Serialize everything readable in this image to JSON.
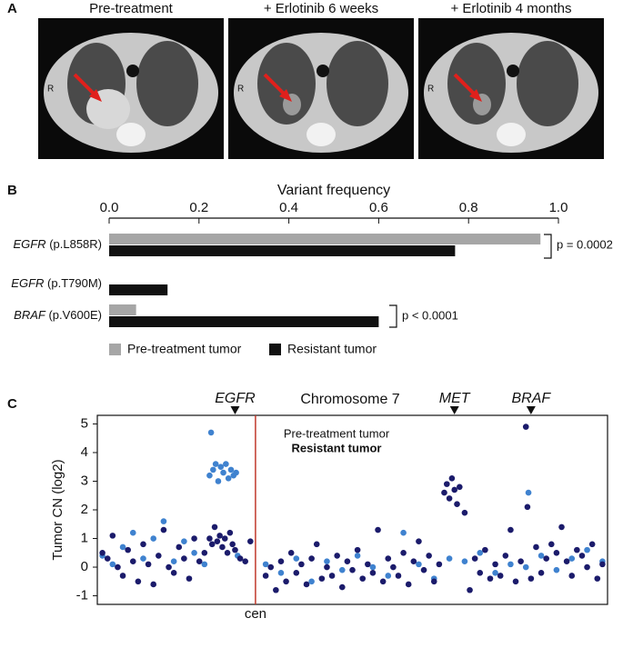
{
  "panel_a": {
    "label": "A",
    "images": [
      {
        "title": "Pre-treatment",
        "marker": "R"
      },
      {
        "title": "+ Erlotinib 6 weeks",
        "marker": "R"
      },
      {
        "title": "+ Erlotinib 4 months",
        "marker": "R"
      }
    ]
  },
  "chart_data": [
    {
      "panel": "B",
      "type": "hbar",
      "xlabel": "Variant frequency",
      "categories": [
        "EGFR (p.L858R)",
        "EGFR (p.T790M)",
        "BRAF (p.V600E)"
      ],
      "series": [
        {
          "name": "Pre-treatment tumor",
          "color": "#a6a6a6",
          "values": [
            0.96,
            0,
            0.06
          ]
        },
        {
          "name": "Resistant tumor",
          "color": "#111111",
          "values": [
            0.77,
            0.13,
            0.6
          ]
        }
      ],
      "xlim": [
        0,
        1
      ],
      "xticks": [
        {
          "value": 0,
          "label": "0.0"
        },
        0.2,
        0.4,
        0.6,
        0.8,
        {
          "value": 1,
          "label": "1.0"
        }
      ],
      "annotations": [
        {
          "text": "p = 0.0002"
        },
        {
          "text": "p < 0.0001"
        }
      ],
      "legend": "bottom"
    },
    {
      "panel": "C",
      "type": "scatter",
      "title": "Chromosome 7",
      "ylabel": "Tumor CN (log2)",
      "xlim": [
        0,
        100
      ],
      "ylim": [
        -1.3,
        5.3
      ],
      "yticks": [
        -1,
        0,
        1,
        2,
        3,
        4,
        5
      ],
      "markers": [
        {
          "label": "EGFR",
          "x": 27
        },
        {
          "label": "MET",
          "x": 70
        },
        {
          "label": "BRAF",
          "x": 85
        }
      ],
      "centromere": {
        "label": "cen",
        "x": 31
      },
      "series": [
        {
          "name": "Pre-treatment tumor",
          "color": "#3f82cf",
          "x": [
            1,
            3,
            5,
            7,
            9,
            11,
            13,
            15,
            17,
            19,
            21,
            22,
            22.3,
            22.7,
            23.2,
            23.7,
            24.2,
            24.7,
            25.2,
            25.7,
            26.2,
            26.7,
            27.2,
            27.5,
            33,
            36,
            39,
            42,
            45,
            48,
            51,
            54,
            57,
            60,
            63,
            66,
            69,
            72,
            75,
            78,
            81,
            84,
            84.5,
            87,
            90,
            93,
            96,
            99
          ],
          "values": [
            0.4,
            0.1,
            0.7,
            1.2,
            0.3,
            1.0,
            1.6,
            0.2,
            0.9,
            0.5,
            0.1,
            3.2,
            4.7,
            3.4,
            3.6,
            3.0,
            3.5,
            3.3,
            3.6,
            3.1,
            3.4,
            3.2,
            3.3,
            0.4,
            0.1,
            -0.2,
            0.3,
            -0.5,
            0.2,
            -0.1,
            0.4,
            0.0,
            -0.3,
            1.2,
            0.1,
            -0.4,
            0.3,
            0.2,
            0.5,
            -0.2,
            0.1,
            0.0,
            2.6,
            0.4,
            -0.1,
            0.3,
            0.6,
            0.2
          ]
        },
        {
          "name": "Resistant tumor",
          "color": "#1b1b6b",
          "x": [
            1,
            2,
            3,
            4,
            5,
            6,
            7,
            8,
            9,
            10,
            11,
            12,
            13,
            14,
            15,
            16,
            17,
            18,
            19,
            20,
            21,
            22,
            22.5,
            23,
            23.5,
            24,
            24.5,
            25,
            25.5,
            26,
            26.5,
            27,
            28,
            29,
            30,
            33,
            34,
            35,
            36,
            37,
            38,
            39,
            40,
            41,
            42,
            43,
            44,
            45,
            46,
            47,
            48,
            49,
            50,
            51,
            52,
            53,
            54,
            55,
            56,
            57,
            58,
            59,
            60,
            61,
            62,
            63,
            64,
            65,
            66,
            67,
            68,
            68.5,
            69,
            69.5,
            70,
            70.5,
            71,
            72,
            73,
            74,
            75,
            76,
            77,
            78,
            79,
            80,
            81,
            82,
            83,
            84,
            84.3,
            85,
            86,
            87,
            88,
            89,
            90,
            91,
            92,
            93,
            94,
            95,
            96,
            97,
            98,
            99
          ],
          "values": [
            0.5,
            0.3,
            1.1,
            0.0,
            -0.3,
            0.6,
            0.2,
            -0.5,
            0.8,
            0.1,
            -0.6,
            0.4,
            1.3,
            0.0,
            -0.2,
            0.7,
            0.3,
            -0.4,
            1.0,
            0.2,
            0.5,
            1.0,
            0.8,
            1.4,
            0.9,
            1.1,
            0.7,
            1.0,
            0.5,
            1.2,
            0.8,
            0.6,
            0.3,
            0.2,
            0.9,
            -0.3,
            0.0,
            -0.8,
            0.2,
            -0.5,
            0.5,
            -0.2,
            0.1,
            -0.6,
            0.3,
            0.8,
            -0.4,
            0.0,
            -0.3,
            0.4,
            -0.7,
            0.2,
            -0.1,
            0.6,
            -0.4,
            0.1,
            -0.2,
            1.3,
            -0.5,
            0.3,
            0.0,
            -0.3,
            0.5,
            -0.6,
            0.2,
            0.9,
            -0.1,
            0.4,
            -0.5,
            0.1,
            2.6,
            2.9,
            2.4,
            3.1,
            2.7,
            2.2,
            2.8,
            1.9,
            -0.8,
            0.3,
            -0.2,
            0.6,
            -0.4,
            0.1,
            -0.3,
            0.4,
            1.3,
            -0.5,
            0.2,
            4.9,
            2.1,
            -0.4,
            0.7,
            -0.2,
            0.3,
            0.8,
            0.5,
            1.4,
            0.2,
            -0.3,
            0.6,
            0.4,
            0.0,
            0.8,
            -0.4,
            0.1
          ]
        }
      ],
      "legend": "inside-top"
    }
  ]
}
